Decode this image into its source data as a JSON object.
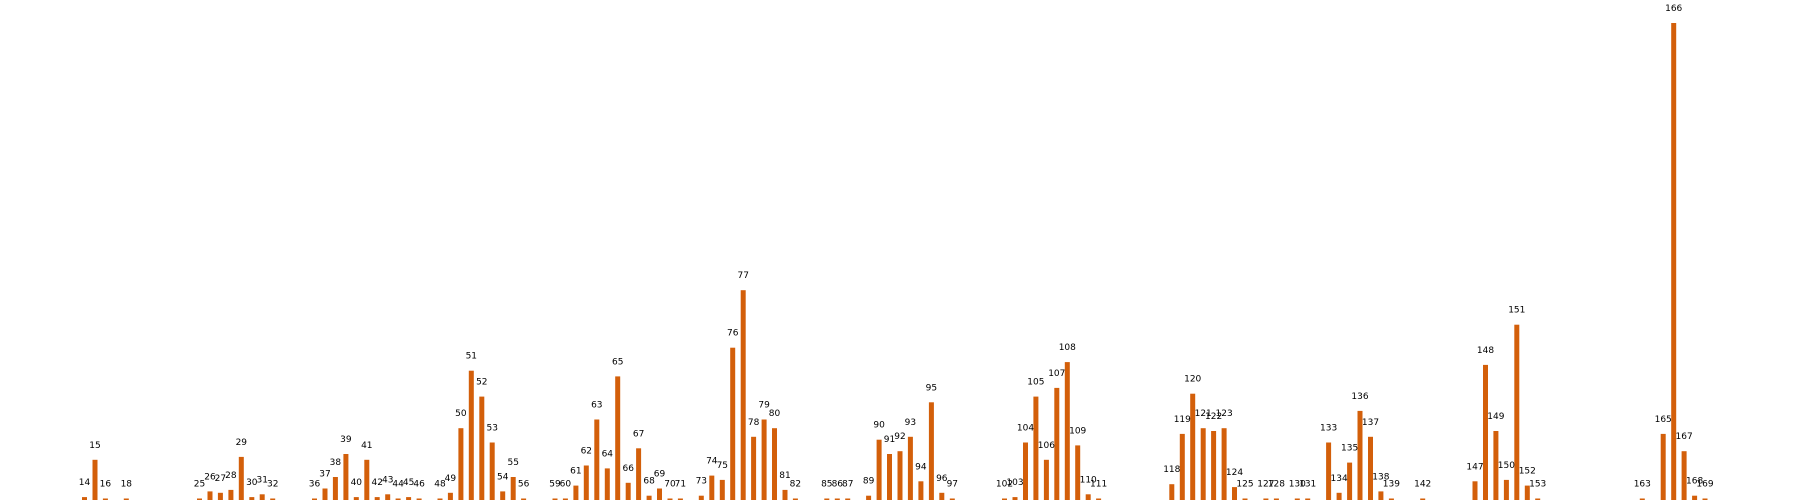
{
  "colors": {
    "bar": "#d35f0a",
    "background": "#ffffff",
    "label": "#000000"
  },
  "chart_data": {
    "type": "bar",
    "title": "",
    "xlabel": "",
    "ylabel": "",
    "axes_visible": false,
    "grid": false,
    "ylim": [
      0,
      166
    ],
    "note": "Each bar is annotated with its category number; bar heights are expressed relative to the tallest bar (category 166).",
    "bars": [
      {
        "label": "14",
        "x": 14,
        "value": 1
      },
      {
        "label": "15",
        "x": 15,
        "value": 14
      },
      {
        "label": "16",
        "x": 16,
        "value": 0.5
      },
      {
        "label": "18",
        "x": 18,
        "value": 0.5
      },
      {
        "label": "25",
        "x": 25,
        "value": 0.5
      },
      {
        "label": "26",
        "x": 26,
        "value": 3
      },
      {
        "label": "27",
        "x": 27,
        "value": 2.5
      },
      {
        "label": "28",
        "x": 28,
        "value": 3.5
      },
      {
        "label": "29",
        "x": 29,
        "value": 15
      },
      {
        "label": "30",
        "x": 30,
        "value": 1
      },
      {
        "label": "31",
        "x": 31,
        "value": 2
      },
      {
        "label": "32",
        "x": 32,
        "value": 0.5
      },
      {
        "label": "36",
        "x": 36,
        "value": 0.5
      },
      {
        "label": "37",
        "x": 37,
        "value": 4
      },
      {
        "label": "38",
        "x": 38,
        "value": 8
      },
      {
        "label": "39",
        "x": 39,
        "value": 16
      },
      {
        "label": "40",
        "x": 40,
        "value": 1
      },
      {
        "label": "41",
        "x": 41,
        "value": 14
      },
      {
        "label": "42",
        "x": 42,
        "value": 1
      },
      {
        "label": "43",
        "x": 43,
        "value": 2
      },
      {
        "label": "44",
        "x": 44,
        "value": 0.5
      },
      {
        "label": "45",
        "x": 45,
        "value": 1
      },
      {
        "label": "46",
        "x": 46,
        "value": 0.5
      },
      {
        "label": "48",
        "x": 48,
        "value": 0.5
      },
      {
        "label": "49",
        "x": 49,
        "value": 2.5
      },
      {
        "label": "50",
        "x": 50,
        "value": 25
      },
      {
        "label": "51",
        "x": 51,
        "value": 45
      },
      {
        "label": "52",
        "x": 52,
        "value": 36
      },
      {
        "label": "53",
        "x": 53,
        "value": 20
      },
      {
        "label": "54",
        "x": 54,
        "value": 3
      },
      {
        "label": "55",
        "x": 55,
        "value": 8
      },
      {
        "label": "56",
        "x": 56,
        "value": 0.5
      },
      {
        "label": "59",
        "x": 59,
        "value": 0.5
      },
      {
        "label": "60",
        "x": 60,
        "value": 0.5
      },
      {
        "label": "61",
        "x": 61,
        "value": 5
      },
      {
        "label": "62",
        "x": 62,
        "value": 12
      },
      {
        "label": "63",
        "x": 63,
        "value": 28
      },
      {
        "label": "64",
        "x": 64,
        "value": 11
      },
      {
        "label": "65",
        "x": 65,
        "value": 43
      },
      {
        "label": "66",
        "x": 66,
        "value": 6
      },
      {
        "label": "67",
        "x": 67,
        "value": 18
      },
      {
        "label": "68",
        "x": 68,
        "value": 1.5
      },
      {
        "label": "69",
        "x": 69,
        "value": 4
      },
      {
        "label": "70",
        "x": 70,
        "value": 0.5
      },
      {
        "label": "71",
        "x": 71,
        "value": 0.5
      },
      {
        "label": "73",
        "x": 73,
        "value": 1.5
      },
      {
        "label": "74",
        "x": 74,
        "value": 8.5
      },
      {
        "label": "75",
        "x": 75,
        "value": 7
      },
      {
        "label": "76",
        "x": 76,
        "value": 53
      },
      {
        "label": "77",
        "x": 77,
        "value": 73
      },
      {
        "label": "78",
        "x": 78,
        "value": 22
      },
      {
        "label": "79",
        "x": 79,
        "value": 28
      },
      {
        "label": "80",
        "x": 80,
        "value": 25
      },
      {
        "label": "81",
        "x": 81,
        "value": 3.5
      },
      {
        "label": "82",
        "x": 82,
        "value": 0.5
      },
      {
        "label": "85",
        "x": 85,
        "value": 0.5
      },
      {
        "label": "86",
        "x": 86,
        "value": 0.5
      },
      {
        "label": "87",
        "x": 87,
        "value": 0.5
      },
      {
        "label": "89",
        "x": 89,
        "value": 1.5
      },
      {
        "label": "90",
        "x": 90,
        "value": 21
      },
      {
        "label": "91",
        "x": 91,
        "value": 16
      },
      {
        "label": "92",
        "x": 92,
        "value": 17
      },
      {
        "label": "93",
        "x": 93,
        "value": 22
      },
      {
        "label": "94",
        "x": 94,
        "value": 6.5
      },
      {
        "label": "95",
        "x": 95,
        "value": 34
      },
      {
        "label": "96",
        "x": 96,
        "value": 2.5
      },
      {
        "label": "97",
        "x": 97,
        "value": 0.5
      },
      {
        "label": "102",
        "x": 102,
        "value": 0.5
      },
      {
        "label": "103",
        "x": 103,
        "value": 1
      },
      {
        "label": "104",
        "x": 104,
        "value": 20
      },
      {
        "label": "105",
        "x": 105,
        "value": 36
      },
      {
        "label": "106",
        "x": 106,
        "value": 14
      },
      {
        "label": "107",
        "x": 107,
        "value": 39
      },
      {
        "label": "108",
        "x": 108,
        "value": 48
      },
      {
        "label": "109",
        "x": 109,
        "value": 19
      },
      {
        "label": "110",
        "x": 110,
        "value": 2
      },
      {
        "label": "111",
        "x": 111,
        "value": 0.5
      },
      {
        "label": "118",
        "x": 118,
        "value": 5.5
      },
      {
        "label": "119",
        "x": 119,
        "value": 23
      },
      {
        "label": "120",
        "x": 120,
        "value": 37
      },
      {
        "label": "121",
        "x": 121,
        "value": 25
      },
      {
        "label": "122",
        "x": 122,
        "value": 24
      },
      {
        "label": "123",
        "x": 123,
        "value": 25
      },
      {
        "label": "124",
        "x": 124,
        "value": 4.5
      },
      {
        "label": "125",
        "x": 125,
        "value": 0.5
      },
      {
        "label": "127",
        "x": 127,
        "value": 0.5
      },
      {
        "label": "128",
        "x": 128,
        "value": 0.5
      },
      {
        "label": "130",
        "x": 130,
        "value": 0.5
      },
      {
        "label": "131",
        "x": 131,
        "value": 0.5
      },
      {
        "label": "133",
        "x": 133,
        "value": 20
      },
      {
        "label": "134",
        "x": 134,
        "value": 2.5
      },
      {
        "label": "135",
        "x": 135,
        "value": 13
      },
      {
        "label": "136",
        "x": 136,
        "value": 31
      },
      {
        "label": "137",
        "x": 137,
        "value": 22
      },
      {
        "label": "138",
        "x": 138,
        "value": 3
      },
      {
        "label": "139",
        "x": 139,
        "value": 0.5
      },
      {
        "label": "142",
        "x": 142,
        "value": 0.5
      },
      {
        "label": "147",
        "x": 147,
        "value": 6.5
      },
      {
        "label": "148",
        "x": 148,
        "value": 47
      },
      {
        "label": "149",
        "x": 149,
        "value": 24
      },
      {
        "label": "150",
        "x": 150,
        "value": 7
      },
      {
        "label": "151",
        "x": 151,
        "value": 61
      },
      {
        "label": "152",
        "x": 152,
        "value": 5
      },
      {
        "label": "153",
        "x": 153,
        "value": 0.5
      },
      {
        "label": "163",
        "x": 163,
        "value": 0.5
      },
      {
        "label": "165",
        "x": 165,
        "value": 23
      },
      {
        "label": "166",
        "x": 166,
        "value": 166
      },
      {
        "label": "167",
        "x": 167,
        "value": 17
      },
      {
        "label": "168",
        "x": 168,
        "value": 1.5
      },
      {
        "label": "169",
        "x": 169,
        "value": 0.5
      }
    ]
  }
}
